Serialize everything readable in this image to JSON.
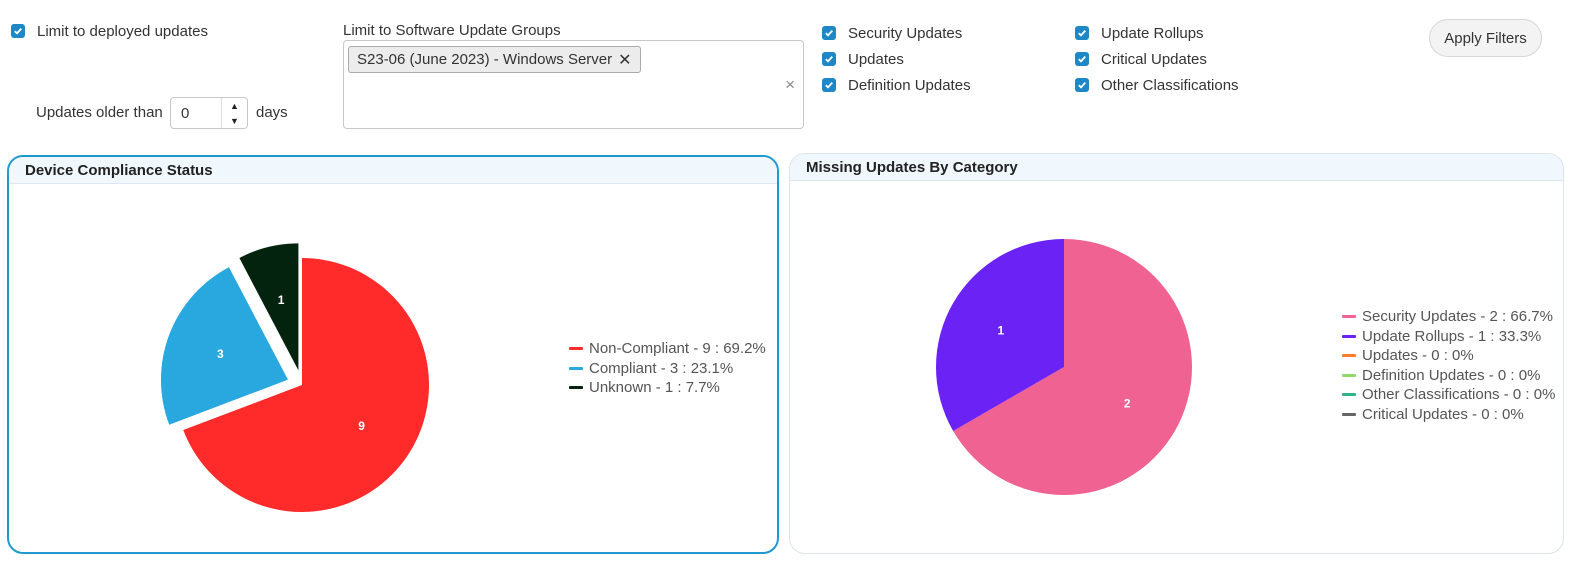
{
  "filters": {
    "limit_deployed": {
      "label": "Limit to deployed updates",
      "checked": true
    },
    "older_than": {
      "prefix": "Updates older than",
      "value": "0",
      "suffix": "days"
    },
    "groups": {
      "label": "Limit to Software Update Groups",
      "selected": [
        {
          "label": "S23-06 (June 2023) - Windows Server",
          "remove": "✕"
        }
      ],
      "clear": "×"
    },
    "classifications_col1": [
      {
        "label": "Security Updates",
        "checked": true
      },
      {
        "label": "Updates",
        "checked": true
      },
      {
        "label": "Definition Updates",
        "checked": true
      }
    ],
    "classifications_col2": [
      {
        "label": "Update Rollups",
        "checked": true
      },
      {
        "label": "Critical Updates",
        "checked": true
      },
      {
        "label": "Other Classifications",
        "checked": true
      }
    ],
    "apply_label": "Apply Filters"
  },
  "accent": "#1e88c7",
  "panels": {
    "compliance": {
      "title": "Device Compliance Status"
    },
    "missing": {
      "title": "Missing Updates By Category"
    }
  },
  "chart_data": [
    {
      "type": "pie",
      "title": "Device Compliance Status",
      "slices": [
        {
          "label": "Non-Compliant",
          "value": 9,
          "percent": "69.2%",
          "color": "#ff2a2a",
          "legend": "Non-Compliant - 9 : 69.2%",
          "exploded": false
        },
        {
          "label": "Compliant",
          "value": 3,
          "percent": "23.1%",
          "color": "#29a8e0",
          "legend": "Compliant - 3 : 23.1%",
          "exploded": true
        },
        {
          "label": "Unknown",
          "value": 1,
          "percent": "7.7%",
          "color": "#04230f",
          "legend": "Unknown - 1 : 7.7%",
          "exploded": true
        }
      ],
      "legend_position": "right"
    },
    {
      "type": "pie",
      "title": "Missing Updates By Category",
      "slices": [
        {
          "label": "Security Updates",
          "value": 2,
          "percent": "66.7%",
          "color": "#f06292",
          "legend": "Security Updates - 2 : 66.7%"
        },
        {
          "label": "Update Rollups",
          "value": 1,
          "percent": "33.3%",
          "color": "#6a22f5",
          "legend": "Update Rollups - 1 : 33.3%"
        },
        {
          "label": "Updates",
          "value": 0,
          "percent": "0%",
          "color": "#ff7a2a",
          "legend": "Updates - 0 : 0%"
        },
        {
          "label": "Definition Updates",
          "value": 0,
          "percent": "0%",
          "color": "#8fd86a",
          "legend": "Definition Updates - 0 : 0%"
        },
        {
          "label": "Other Classifications",
          "value": 0,
          "percent": "0%",
          "color": "#2fb48a",
          "legend": "Other Classifications - 0 : 0%"
        },
        {
          "label": "Critical Updates",
          "value": 0,
          "percent": "0%",
          "color": "#666666",
          "legend": "Critical Updates - 0 : 0%"
        }
      ],
      "legend_position": "right"
    }
  ]
}
